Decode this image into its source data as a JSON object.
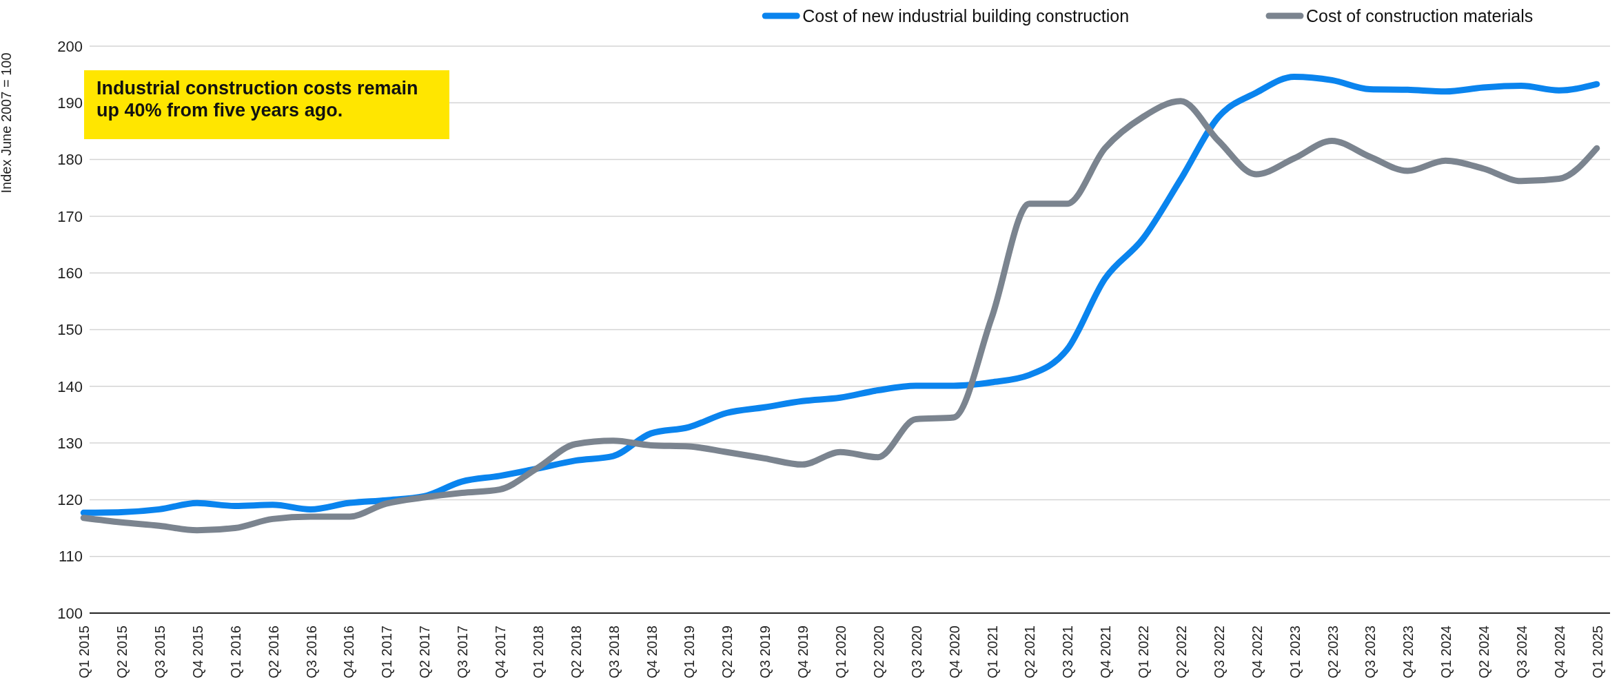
{
  "chart_data": {
    "type": "line",
    "ylabel": "Index June 2007 = 100",
    "annotations": [
      "Industrial construction costs remain up 40% from five years ago."
    ],
    "categories": [
      "Q1 2015",
      "Q2 2015",
      "Q3 2015",
      "Q4 2015",
      "Q1 2016",
      "Q2 2016",
      "Q3 2016",
      "Q4 2016",
      "Q1 2017",
      "Q2 2017",
      "Q3 2017",
      "Q4 2017",
      "Q1 2018",
      "Q2 2018",
      "Q3 2018",
      "Q4 2018",
      "Q1 2019",
      "Q2 2019",
      "Q3 2019",
      "Q4 2019",
      "Q1 2020",
      "Q2 2020",
      "Q3 2020",
      "Q4 2020",
      "Q1 2021",
      "Q2 2021",
      "Q3 2021",
      "Q4 2021",
      "Q1 2022",
      "Q2 2022",
      "Q3 2022",
      "Q4 2022",
      "Q1 2023",
      "Q2 2023",
      "Q3 2023",
      "Q4 2023",
      "Q1 2024",
      "Q2 2024",
      "Q3 2024",
      "Q4 2024",
      "Q1 2025"
    ],
    "series": [
      {
        "name": "Cost of new industrial building construction",
        "color": "#0a84ee",
        "values": [
          117.7,
          117.8,
          118.3,
          119.4,
          118.9,
          119.1,
          118.3,
          119.4,
          119.9,
          120.6,
          123.2,
          124.2,
          125.5,
          126.9,
          127.7,
          131.7,
          132.8,
          135.3,
          136.3,
          137.4,
          138.0,
          139.3,
          140.1,
          140.1,
          140.7,
          142.0,
          146.5,
          159.0,
          166.0,
          176.5,
          187.5,
          191.8,
          194.6,
          194.0,
          192.4,
          192.3,
          192.0,
          192.7,
          193.0,
          192.2,
          193.3
        ]
      },
      {
        "name": "Cost of construction materials",
        "color": "#7b848f",
        "values": [
          116.8,
          116.0,
          115.4,
          114.6,
          115.0,
          116.6,
          117.0,
          117.0,
          119.3,
          120.4,
          121.2,
          121.8,
          125.6,
          129.8,
          130.4,
          129.6,
          129.4,
          128.4,
          127.3,
          126.2,
          128.4,
          127.5,
          134.2,
          134.5,
          152.0,
          172.2,
          172.2,
          182.0,
          187.5,
          190.3,
          183.3,
          177.4,
          180.2,
          183.3,
          180.5,
          178.0,
          179.8,
          178.4,
          176.2,
          176.6,
          182.0
        ]
      }
    ],
    "ylim": [
      100,
      200
    ],
    "yticks": [
      100,
      110,
      120,
      130,
      140,
      150,
      160,
      170,
      180,
      190,
      200
    ],
    "grid": "y",
    "legend": "top right",
    "marker": "none",
    "line_style": "solid"
  }
}
